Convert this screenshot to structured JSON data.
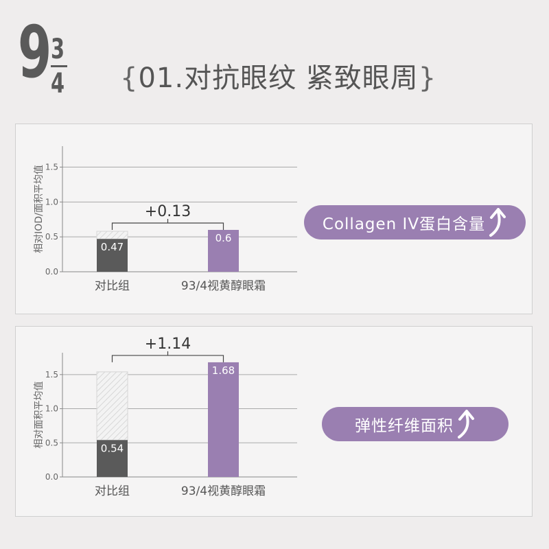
{
  "logo": {
    "big": "9",
    "numerator": "3",
    "denominator": "4"
  },
  "headline": {
    "open": "{",
    "text": "01.对抗眼纹  紧致眼周",
    "close": "}"
  },
  "colors": {
    "control": "#5a5a5a",
    "product": "#9a7fb1",
    "pill": "#9a7fb1"
  },
  "chart_data": [
    {
      "type": "bar",
      "ylabel": "相对IOD/面积平均值",
      "yticks": [
        "0.0",
        "0.5",
        "1.0",
        "1.5"
      ],
      "ylim": [
        0,
        1.8
      ],
      "grid": true,
      "categories": [
        "对比组",
        "93/4视黄醇眼霜"
      ],
      "values": [
        0.47,
        0.6
      ],
      "value_labels": [
        "0.47",
        "0.6"
      ],
      "hatched_target": 0.58,
      "difference_label": "+0.13",
      "badge": "Collagen IV蛋白含量",
      "badge_icon": "arrow-up-icon"
    },
    {
      "type": "bar",
      "ylabel": "相对面积平均值",
      "yticks": [
        "0.0",
        "0.5",
        "1.0",
        "1.5"
      ],
      "ylim": [
        0,
        1.82
      ],
      "grid": true,
      "categories": [
        "对比组",
        "93/4视黄醇眼霜"
      ],
      "values": [
        0.54,
        1.68
      ],
      "value_labels": [
        "0.54",
        "1.68"
      ],
      "hatched_target": 1.54,
      "difference_label": "+1.14",
      "badge": "弹性纤维面积",
      "badge_icon": "arrow-up-icon"
    }
  ]
}
